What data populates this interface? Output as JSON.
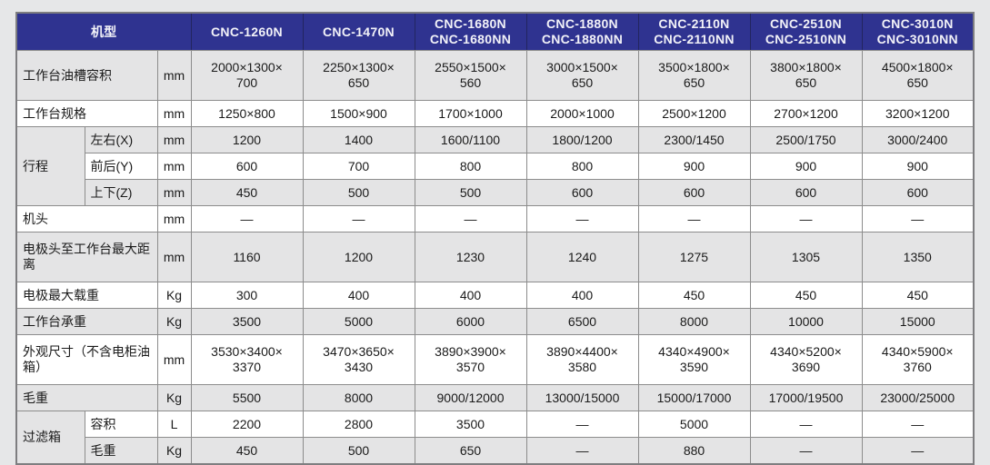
{
  "page": {
    "background": "#E6E7E8",
    "description": "CNC machine specification table"
  },
  "colors": {
    "header_bg": "#2F3390",
    "header_text": "#F2F2F8",
    "header_border": "#22255F",
    "row_shade": "#E4E4E5",
    "row_white": "#FFFFFF",
    "grid_border": "#8C8C8C",
    "outer_border": "#7E7E80",
    "body_text": "#1A1A1A"
  },
  "table": {
    "header": {
      "model_label": "机型",
      "models": [
        "CNC-1260N",
        "CNC-1470N",
        "CNC-1680N\nCNC-1680NN",
        "CNC-1880N\nCNC-1880NN",
        "CNC-2110N\nCNC-2110NN",
        "CNC-2510N\nCNC-2510NN",
        "CNC-3010N\nCNC-3010NN"
      ]
    },
    "rows": [
      {
        "label": "工作台油槽容积",
        "unit": "mm",
        "tall": true,
        "values": [
          "2000×1300×\n700",
          "2250×1300×\n650",
          "2550×1500×\n560",
          "3000×1500×\n650",
          "3500×1800×\n650",
          "3800×1800×\n650",
          "4500×1800×\n650"
        ]
      },
      {
        "label": "工作台规格",
        "unit": "mm",
        "values": [
          "1250×800",
          "1500×900",
          "1700×1000",
          "2000×1000",
          "2500×1200",
          "2700×1200",
          "3200×1200"
        ]
      },
      {
        "group": "行程",
        "group_rowspan": 3,
        "sub": "左右(X)",
        "unit": "mm",
        "values": [
          "1200",
          "1400",
          "1600/1100",
          "1800/1200",
          "2300/1450",
          "2500/1750",
          "3000/2400"
        ]
      },
      {
        "sub": "前后(Y)",
        "unit": "mm",
        "values": [
          "600",
          "700",
          "800",
          "800",
          "900",
          "900",
          "900"
        ]
      },
      {
        "sub": "上下(Z)",
        "unit": "mm",
        "values": [
          "450",
          "500",
          "500",
          "600",
          "600",
          "600",
          "600"
        ]
      },
      {
        "label": "机头",
        "unit": "mm",
        "values": [
          "—",
          "—",
          "—",
          "—",
          "—",
          "—",
          "—"
        ]
      },
      {
        "label": "电极头至工作台最大距离",
        "unit": "mm",
        "tall": true,
        "values": [
          "1160",
          "1200",
          "1230",
          "1240",
          "1275",
          "1305",
          "1350"
        ]
      },
      {
        "label": "电极最大载重",
        "unit": "Kg",
        "values": [
          "300",
          "400",
          "400",
          "400",
          "450",
          "450",
          "450"
        ]
      },
      {
        "label": "工作台承重",
        "unit": "Kg",
        "values": [
          "3500",
          "5000",
          "6000",
          "6500",
          "8000",
          "10000",
          "15000"
        ]
      },
      {
        "label": "外观尺寸（不含电柜油箱）",
        "unit": "mm",
        "tall": true,
        "values": [
          "3530×3400×\n3370",
          "3470×3650×\n3430",
          "3890×3900×\n3570",
          "3890×4400×\n3580",
          "4340×4900×\n3590",
          "4340×5200×\n3690",
          "4340×5900×\n3760"
        ]
      },
      {
        "label": "毛重",
        "unit": "Kg",
        "values": [
          "5500",
          "8000",
          "9000/12000",
          "13000/15000",
          "15000/17000",
          "17000/19500",
          "23000/25000"
        ]
      },
      {
        "group": "过滤箱",
        "group_rowspan": 2,
        "sub": "容积",
        "unit": "L",
        "values": [
          "2200",
          "2800",
          "3500",
          "—",
          "5000",
          "—",
          "—"
        ]
      },
      {
        "sub": "毛重",
        "unit": "Kg",
        "values": [
          "450",
          "500",
          "650",
          "—",
          "880",
          "—",
          "—"
        ]
      }
    ]
  }
}
